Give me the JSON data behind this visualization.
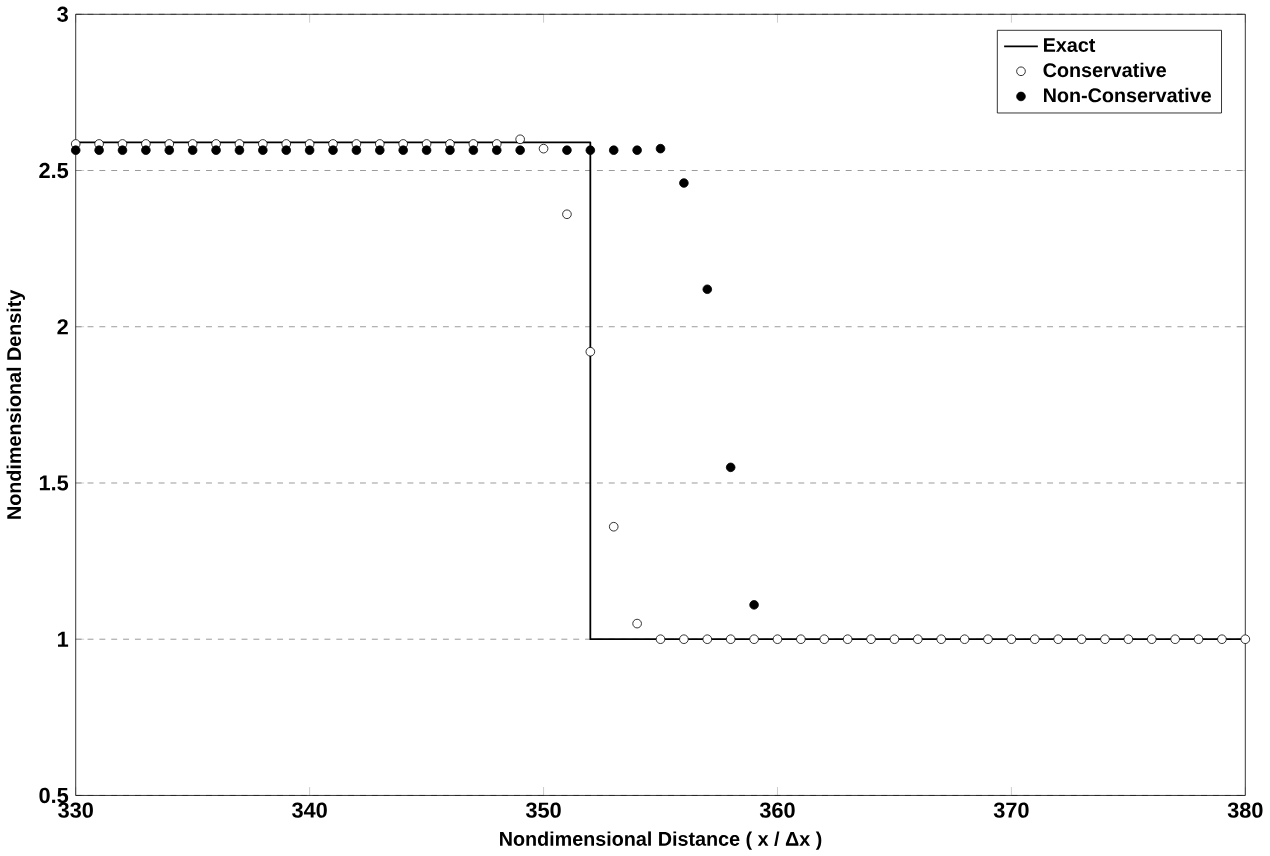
{
  "chart_data": {
    "type": "line",
    "xlabel": "Nondimensional Distance ( x / Δx )",
    "ylabel": "Nondimensional Density",
    "xlim": [
      330,
      380
    ],
    "xticks": [
      330,
      340,
      350,
      360,
      370,
      380
    ],
    "ylim": [
      0.5,
      3
    ],
    "yticks": [
      0.5,
      1,
      1.5,
      2,
      2.5,
      3
    ],
    "grid": "y",
    "legend": "top right",
    "series": [
      {
        "name": "Exact",
        "color": "#000000",
        "marker": "none",
        "x": [
          330,
          352,
          352,
          380
        ],
        "values": [
          2.59,
          2.59,
          1.0,
          1.0
        ]
      },
      {
        "name": "Conservative",
        "type": "scatter",
        "color": "#ffffff",
        "marker": "circle",
        "x": [
          330,
          331,
          332,
          333,
          334,
          335,
          336,
          337,
          338,
          339,
          340,
          341,
          342,
          343,
          344,
          345,
          346,
          347,
          348,
          349,
          350,
          351,
          352,
          353,
          354,
          355,
          356,
          357,
          358,
          359,
          360,
          361,
          362,
          363,
          364,
          365,
          366,
          367,
          368,
          369,
          370,
          371,
          372,
          373,
          374,
          375,
          376,
          377,
          378,
          379,
          380
        ],
        "values": [
          2.585,
          2.585,
          2.585,
          2.585,
          2.585,
          2.585,
          2.585,
          2.585,
          2.585,
          2.585,
          2.585,
          2.585,
          2.585,
          2.585,
          2.585,
          2.585,
          2.585,
          2.585,
          2.585,
          2.6,
          2.57,
          2.36,
          1.92,
          1.36,
          1.05,
          1.0,
          1.0,
          1.0,
          1.0,
          1.0,
          1.0,
          1.0,
          1.0,
          1.0,
          1.0,
          1.0,
          1.0,
          1.0,
          1.0,
          1.0,
          1.0,
          1.0,
          1.0,
          1.0,
          1.0,
          1.0,
          1.0,
          1.0,
          1.0,
          1.0,
          1.0
        ]
      },
      {
        "name": "Non-Conservative",
        "type": "scatter",
        "color": "#000000",
        "marker": "circle",
        "x": [
          330,
          331,
          332,
          333,
          334,
          335,
          336,
          337,
          338,
          339,
          340,
          341,
          342,
          343,
          344,
          345,
          346,
          347,
          348,
          349,
          350,
          351,
          352,
          353,
          354,
          355,
          356,
          357,
          358,
          359
        ],
        "values": [
          2.565,
          2.565,
          2.565,
          2.565,
          2.565,
          2.565,
          2.565,
          2.565,
          2.565,
          2.565,
          2.565,
          2.565,
          2.565,
          2.565,
          2.565,
          2.565,
          2.565,
          2.565,
          2.565,
          2.565,
          null,
          2.565,
          2.565,
          2.565,
          2.565,
          2.57,
          2.46,
          2.12,
          1.55,
          1.11
        ]
      }
    ]
  }
}
